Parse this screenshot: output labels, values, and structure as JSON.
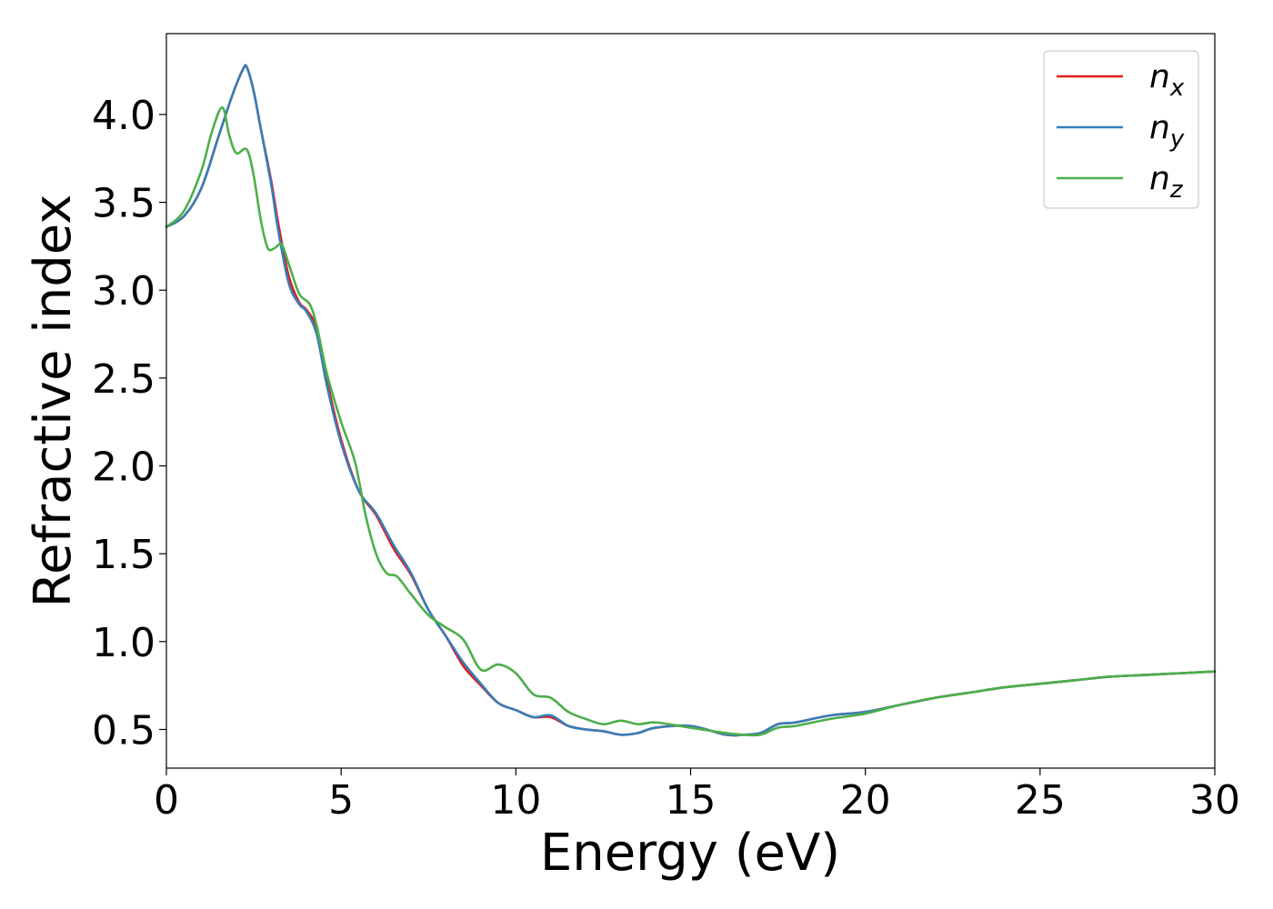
{
  "chart_data": {
    "type": "line",
    "title": "",
    "xlabel": "Energy (eV)",
    "ylabel": "Refractive index",
    "xlim": [
      0,
      30
    ],
    "ylim": [
      0.28,
      4.46
    ],
    "xticks": [
      0,
      5,
      10,
      15,
      20,
      25,
      30
    ],
    "xtick_labels": [
      "0",
      "5",
      "10",
      "15",
      "20",
      "25",
      "30"
    ],
    "yticks": [
      0.5,
      1.0,
      1.5,
      2.0,
      2.5,
      3.0,
      3.5,
      4.0
    ],
    "ytick_labels": [
      "0.5",
      "1.0",
      "1.5",
      "2.0",
      "2.5",
      "3.0",
      "3.5",
      "4.0"
    ],
    "grid": false,
    "legend_position": "top-right",
    "series": [
      {
        "name": "n",
        "subscript": "x",
        "color": "#e41a1c",
        "x": [
          0,
          0.5,
          1.0,
          1.5,
          1.8,
          2.0,
          2.2,
          2.3,
          2.5,
          2.7,
          3.0,
          3.2,
          3.5,
          3.8,
          4.0,
          4.3,
          4.6,
          5.0,
          5.5,
          6.0,
          6.5,
          7.0,
          7.5,
          8.0,
          8.5,
          9.0,
          9.5,
          10.0,
          10.5,
          11.0,
          11.5,
          12.0,
          12.5,
          13.0,
          13.5,
          14.0,
          15.0,
          16.0,
          16.5,
          17.0,
          17.5,
          18.0,
          19.0,
          20.0,
          21.0,
          22.0,
          23.0,
          24.0,
          25.0,
          26.0,
          27.0,
          28.0,
          29.0,
          30.0
        ],
        "y": [
          3.36,
          3.42,
          3.58,
          3.88,
          4.06,
          4.17,
          4.26,
          4.27,
          4.13,
          3.92,
          3.62,
          3.38,
          3.08,
          2.93,
          2.89,
          2.78,
          2.48,
          2.15,
          1.86,
          1.72,
          1.53,
          1.38,
          1.18,
          1.03,
          0.86,
          0.75,
          0.65,
          0.61,
          0.57,
          0.57,
          0.52,
          0.5,
          0.49,
          0.47,
          0.48,
          0.51,
          0.52,
          0.47,
          0.47,
          0.48,
          0.53,
          0.54,
          0.58,
          0.6,
          0.64,
          0.68,
          0.71,
          0.74,
          0.76,
          0.78,
          0.8,
          0.81,
          0.82,
          0.83
        ]
      },
      {
        "name": "n",
        "subscript": "y",
        "color": "#377eb8",
        "x": [
          0,
          0.5,
          1.0,
          1.5,
          1.8,
          2.0,
          2.2,
          2.3,
          2.5,
          2.7,
          3.0,
          3.2,
          3.5,
          3.8,
          4.0,
          4.3,
          4.6,
          5.0,
          5.5,
          6.0,
          6.5,
          7.0,
          7.5,
          8.0,
          8.5,
          9.0,
          9.5,
          10.0,
          10.5,
          11.0,
          11.5,
          12.0,
          12.5,
          13.0,
          13.5,
          14.0,
          15.0,
          16.0,
          16.5,
          17.0,
          17.5,
          18.0,
          19.0,
          20.0,
          21.0,
          22.0,
          23.0,
          24.0,
          25.0,
          26.0,
          27.0,
          28.0,
          29.0,
          30.0
        ],
        "y": [
          3.36,
          3.42,
          3.58,
          3.88,
          4.06,
          4.17,
          4.26,
          4.27,
          4.13,
          3.92,
          3.6,
          3.34,
          3.04,
          2.92,
          2.88,
          2.75,
          2.45,
          2.13,
          1.86,
          1.73,
          1.55,
          1.39,
          1.18,
          1.03,
          0.88,
          0.76,
          0.65,
          0.61,
          0.57,
          0.58,
          0.52,
          0.5,
          0.49,
          0.47,
          0.48,
          0.51,
          0.52,
          0.47,
          0.47,
          0.48,
          0.53,
          0.54,
          0.58,
          0.6,
          0.64,
          0.68,
          0.71,
          0.74,
          0.76,
          0.78,
          0.8,
          0.81,
          0.82,
          0.83
        ]
      },
      {
        "name": "n",
        "subscript": "z",
        "color": "#4daf4a",
        "x": [
          0,
          0.5,
          1.0,
          1.3,
          1.6,
          1.8,
          2.0,
          2.3,
          2.5,
          2.7,
          2.9,
          3.1,
          3.3,
          3.5,
          3.8,
          4.1,
          4.3,
          4.6,
          5.0,
          5.4,
          5.7,
          6.0,
          6.3,
          6.6,
          7.0,
          7.5,
          8.0,
          8.5,
          9.0,
          9.5,
          10.0,
          10.5,
          11.0,
          11.5,
          12.0,
          12.5,
          13.0,
          13.5,
          14.0,
          15.0,
          16.0,
          16.5,
          17.0,
          17.5,
          18.0,
          19.0,
          20.0,
          21.0,
          22.0,
          23.0,
          24.0,
          25.0,
          26.0,
          27.0,
          28.0,
          29.0,
          30.0
        ],
        "y": [
          3.36,
          3.45,
          3.68,
          3.9,
          4.04,
          3.88,
          3.78,
          3.8,
          3.65,
          3.4,
          3.24,
          3.24,
          3.26,
          3.15,
          2.98,
          2.92,
          2.8,
          2.52,
          2.25,
          2.02,
          1.72,
          1.5,
          1.39,
          1.37,
          1.27,
          1.15,
          1.08,
          1.01,
          0.84,
          0.87,
          0.82,
          0.7,
          0.68,
          0.6,
          0.56,
          0.53,
          0.55,
          0.53,
          0.54,
          0.51,
          0.48,
          0.47,
          0.47,
          0.51,
          0.52,
          0.56,
          0.59,
          0.64,
          0.68,
          0.71,
          0.74,
          0.76,
          0.78,
          0.8,
          0.81,
          0.82,
          0.83
        ]
      }
    ]
  }
}
